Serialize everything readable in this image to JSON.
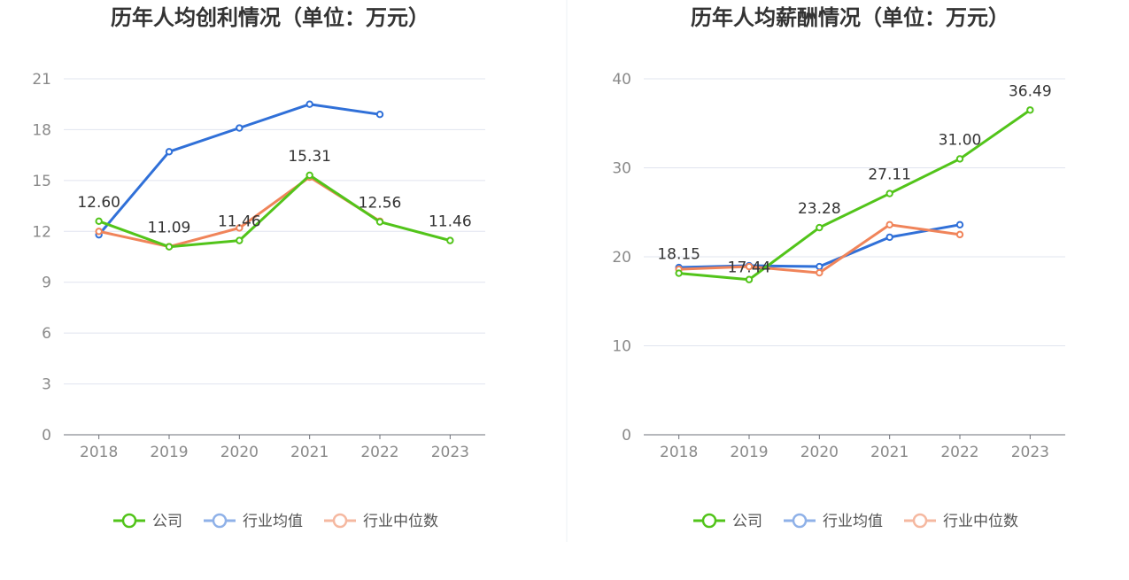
{
  "colors": {
    "company": "#52c41a",
    "industry_avg": "#3070d8",
    "industry_median": "#f0845a",
    "divider": "#eef0f4"
  },
  "legend": [
    {
      "label": "公司",
      "color": "#52c41a"
    },
    {
      "label": "行业均值",
      "color": "#8fb1e8"
    },
    {
      "label": "行业中位数",
      "color": "#f5b8a0"
    }
  ],
  "chart_data": [
    {
      "type": "line",
      "title": "历年人均创利情况（单位：万元）",
      "categories": [
        "2018",
        "2019",
        "2020",
        "2021",
        "2022",
        "2023"
      ],
      "ylim": [
        0,
        21
      ],
      "yticks": [
        0,
        3,
        6,
        9,
        12,
        15,
        18,
        21
      ],
      "ytick_labels": [
        "0",
        "3",
        "6",
        "9",
        "12",
        "15",
        "18",
        "21"
      ],
      "grid": true,
      "legend_position": "bottom-center",
      "series": [
        {
          "name": "公司",
          "values": [
            12.6,
            11.09,
            11.46,
            15.31,
            12.56,
            11.46
          ],
          "labels": [
            "12.60",
            "11.09",
            "11.46",
            "15.31",
            "12.56",
            "11.46"
          ]
        },
        {
          "name": "行业均值",
          "values": [
            11.8,
            16.7,
            18.1,
            19.5,
            18.9,
            null
          ]
        },
        {
          "name": "行业中位数",
          "values": [
            12.0,
            11.1,
            12.2,
            15.2,
            12.6,
            null
          ]
        }
      ]
    },
    {
      "type": "line",
      "title": "历年人均薪酬情况（单位：万元）",
      "categories": [
        "2018",
        "2019",
        "2020",
        "2021",
        "2022",
        "2023"
      ],
      "ylim": [
        0,
        40
      ],
      "yticks": [
        0,
        10,
        20,
        30,
        40
      ],
      "ytick_labels": [
        "0",
        "10",
        "20",
        "30",
        "40"
      ],
      "grid": true,
      "legend_position": "bottom-center",
      "series": [
        {
          "name": "公司",
          "values": [
            18.15,
            17.44,
            23.28,
            27.11,
            31.0,
            36.49
          ],
          "labels": [
            "18.15",
            "17.44",
            "23.28",
            "27.11",
            "31.00",
            "36.49"
          ]
        },
        {
          "name": "行业均值",
          "values": [
            18.8,
            19.0,
            18.9,
            22.2,
            23.6,
            null
          ]
        },
        {
          "name": "行业中位数",
          "values": [
            18.6,
            18.9,
            18.2,
            23.6,
            22.5,
            null
          ]
        }
      ]
    }
  ]
}
